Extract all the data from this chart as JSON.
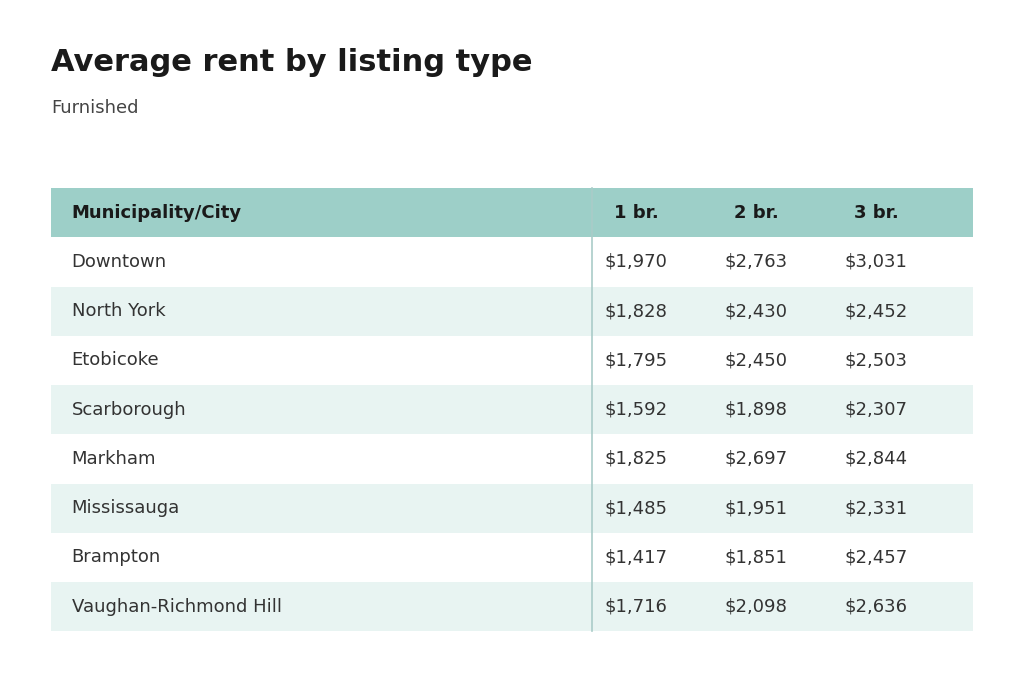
{
  "title": "Average rent by listing type",
  "subtitle": "Furnished",
  "columns": [
    "Municipality/City",
    "1 br.",
    "2 br.",
    "3 br."
  ],
  "rows": [
    [
      "Downtown",
      "$1,970",
      "$2,763",
      "$3,031"
    ],
    [
      "North York",
      "$1,828",
      "$2,430",
      "$2,452"
    ],
    [
      "Etobicoke",
      "$1,795",
      "$2,450",
      "$2,503"
    ],
    [
      "Scarborough",
      "$1,592",
      "$1,898",
      "$2,307"
    ],
    [
      "Markham",
      "$1,825",
      "$2,697",
      "$2,844"
    ],
    [
      "Mississauga",
      "$1,485",
      "$1,951",
      "$2,331"
    ],
    [
      "Brampton",
      "$1,417",
      "$1,851",
      "$2,457"
    ],
    [
      "Vaughan-Richmond Hill",
      "$1,716",
      "$2,098",
      "$2,636"
    ]
  ],
  "header_bg_color": "#9DCFC8",
  "alt_row_bg_color": "#E8F4F2",
  "white_row_bg_color": "#FFFFFF",
  "bg_color": "#FFFFFF",
  "title_fontsize": 22,
  "subtitle_fontsize": 13,
  "header_fontsize": 13,
  "cell_fontsize": 13,
  "title_color": "#1a1a1a",
  "subtitle_color": "#444444",
  "header_text_color": "#1a1a1a",
  "cell_text_color": "#333333"
}
